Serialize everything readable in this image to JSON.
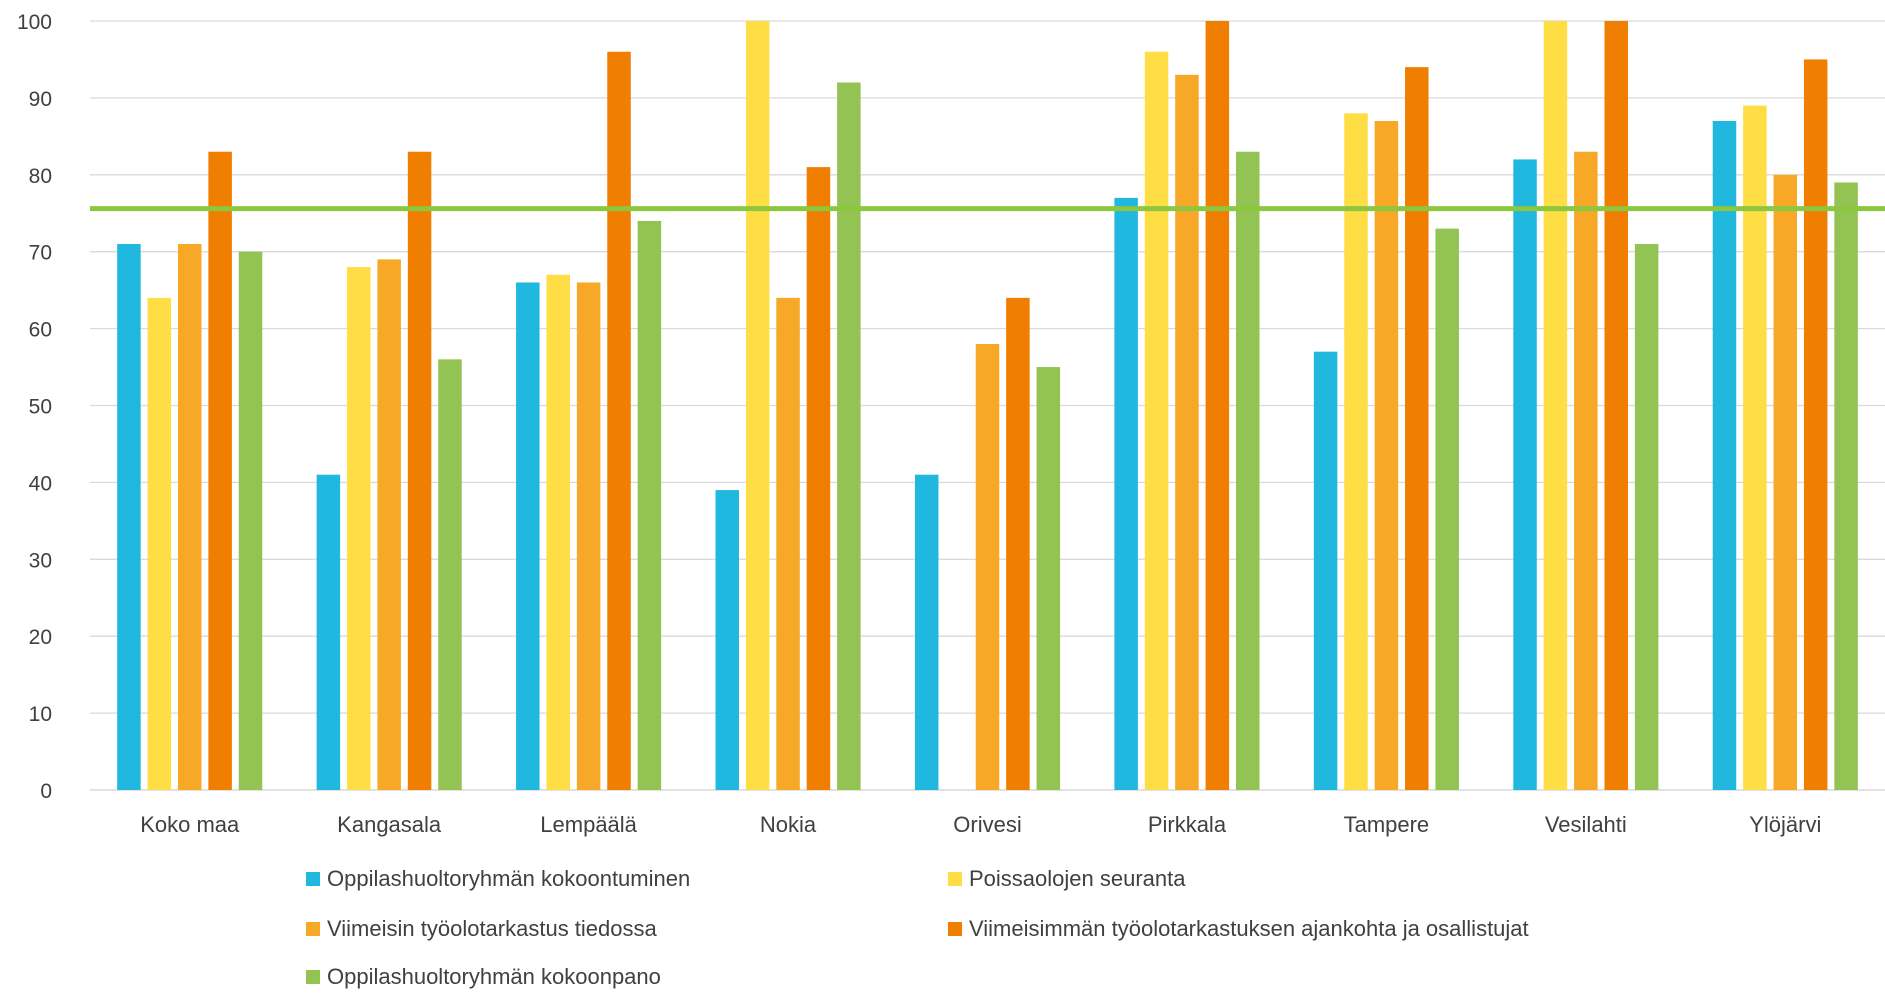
{
  "chart_data": {
    "type": "bar",
    "categories": [
      "Koko maa",
      "Kangasala",
      "Lempäälä",
      "Nokia",
      "Orivesi",
      "Pirkkala",
      "Tampere",
      "Vesilahti",
      "Ylöjärvi"
    ],
    "series": [
      {
        "name": "Oppilashuoltoryhmän kokoontuminen",
        "color": "#21b8e0",
        "values": [
          71,
          41,
          66,
          39,
          41,
          77,
          57,
          82,
          87
        ]
      },
      {
        "name": "Poissaolojen seuranta",
        "color": "#ffdd44",
        "values": [
          64,
          68,
          67,
          100,
          null,
          96,
          88,
          100,
          89
        ]
      },
      {
        "name": "Viimeisin työolotarkastus tiedossa",
        "color": "#f7a827",
        "values": [
          71,
          69,
          66,
          64,
          58,
          93,
          87,
          83,
          80
        ]
      },
      {
        "name": "Viimeisimmän työolotarkastuksen ajankohta ja osallistujat",
        "color": "#f07e00",
        "values": [
          83,
          83,
          96,
          81,
          64,
          100,
          94,
          100,
          95
        ]
      },
      {
        "name": "Oppilashuoltoryhmän kokoonpano",
        "color": "#92c353",
        "values": [
          70,
          56,
          74,
          92,
          55,
          83,
          73,
          71,
          79
        ]
      }
    ],
    "reference_line": {
      "value": 75.6,
      "color": "#8dc63f"
    },
    "yticks": [
      "0",
      "10",
      "20",
      "30",
      "40",
      "50",
      "60",
      "70",
      "80",
      "90",
      "100"
    ],
    "ylim": [
      0,
      100
    ],
    "grid": true,
    "legend_position": "bottom",
    "title": "",
    "xlabel": "",
    "ylabel": ""
  }
}
